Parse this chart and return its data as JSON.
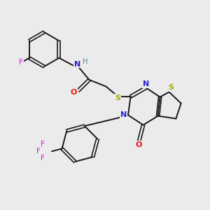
{
  "background_color": "#ebebeb",
  "bond_color": "#1a1a1a",
  "N_color": "#2222cc",
  "S_color": "#aaaa00",
  "O_color": "#ee1111",
  "F_color": "#ee00ee",
  "H_color": "#448888",
  "figsize": [
    3.0,
    3.0
  ],
  "dpi": 100,
  "xlim": [
    0,
    10
  ],
  "ylim": [
    0,
    10
  ]
}
